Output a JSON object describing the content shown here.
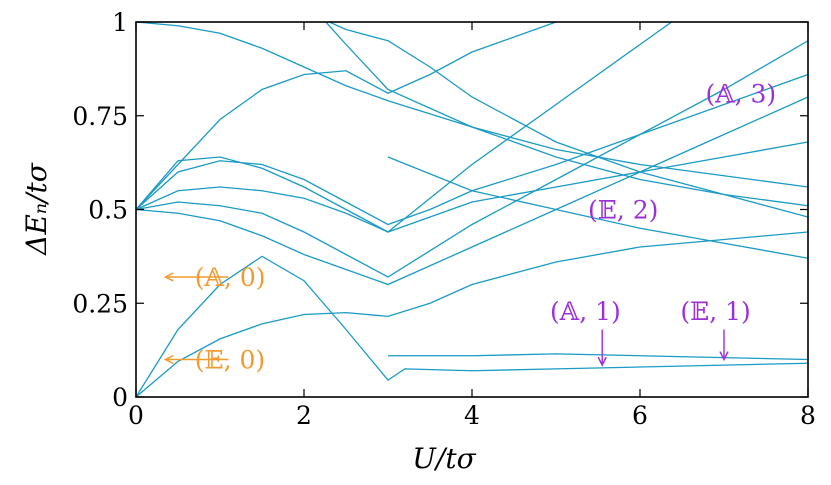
{
  "chart_data": {
    "type": "line",
    "xlabel": "U/tσ",
    "ylabel": "ΔEₙ/tσ",
    "xlim": [
      0,
      8
    ],
    "ylim": [
      0,
      1
    ],
    "x_ticks": [
      "0",
      "2",
      "4",
      "6",
      "8"
    ],
    "y_ticks": [
      "0",
      "0.25",
      "0.5",
      "0.75",
      "1"
    ],
    "x_tick_values": [
      0,
      2,
      4,
      6,
      8
    ],
    "y_tick_values": [
      0,
      0.25,
      0.5,
      0.75,
      1
    ],
    "grid": false,
    "line_color": "#1a9bc4",
    "series": [
      {
        "x": [
          0,
          0.5,
          1,
          1.5,
          2,
          2.5,
          3,
          3.5,
          4,
          5,
          6,
          7,
          8
        ],
        "y": [
          0,
          0.095,
          0.155,
          0.195,
          0.22,
          0.225,
          0.215,
          0.25,
          0.3,
          0.36,
          0.4,
          0.42,
          0.44
        ]
      },
      {
        "x": [
          0,
          0.5,
          1,
          1.5,
          2,
          2.5,
          3,
          3.2,
          4,
          5,
          6,
          7,
          8
        ],
        "y": [
          0,
          0.18,
          0.3,
          0.375,
          0.31,
          0.18,
          0.045,
          0.075,
          0.07,
          0.075,
          0.08,
          0.085,
          0.09
        ]
      },
      {
        "x": [
          0,
          0.5,
          1,
          1.5,
          2,
          2.5,
          3,
          4,
          5,
          6,
          7,
          8
        ],
        "y": [
          0.5,
          0.49,
          0.47,
          0.43,
          0.38,
          0.34,
          0.3,
          0.4,
          0.5,
          0.6,
          0.7,
          0.8
        ]
      },
      {
        "x": [
          0,
          0.5,
          1,
          1.5,
          2,
          2.5,
          3,
          4,
          5,
          6,
          7,
          8
        ],
        "y": [
          0.5,
          0.52,
          0.51,
          0.49,
          0.44,
          0.38,
          0.32,
          0.46,
          0.58,
          0.7,
          0.82,
          0.95
        ]
      },
      {
        "x": [
          0,
          0.5,
          1,
          1.5,
          2,
          2.5,
          3,
          4,
          5,
          6,
          7,
          8
        ],
        "y": [
          0.5,
          0.55,
          0.56,
          0.55,
          0.53,
          0.49,
          0.44,
          0.62,
          0.78,
          0.94,
          1.1,
          1.2
        ]
      },
      {
        "x": [
          0,
          0.5,
          1,
          1.5,
          2,
          2.5,
          3,
          3.5,
          4,
          5,
          6,
          7,
          8
        ],
        "y": [
          0.5,
          0.6,
          0.63,
          0.62,
          0.58,
          0.52,
          0.46,
          0.5,
          0.55,
          0.62,
          0.7,
          0.78,
          0.86
        ]
      },
      {
        "x": [
          0,
          0.5,
          1,
          1.5,
          2,
          2.5,
          3,
          3.5,
          4,
          5,
          6,
          7,
          8
        ],
        "y": [
          0.5,
          0.63,
          0.64,
          0.61,
          0.56,
          0.5,
          0.44,
          0.48,
          0.52,
          0.56,
          0.6,
          0.64,
          0.68
        ]
      },
      {
        "x": [
          0,
          0.5,
          1,
          1.5,
          2,
          2.5,
          3,
          4,
          5,
          6,
          7,
          8
        ],
        "y": [
          1,
          0.99,
          0.97,
          0.93,
          0.88,
          0.83,
          0.79,
          0.72,
          0.66,
          0.62,
          0.59,
          0.56
        ]
      },
      {
        "x": [
          0,
          0.5,
          1,
          1.5,
          2,
          2.5,
          3,
          3.5,
          4,
          5,
          6,
          7,
          8
        ],
        "y": [
          0.5,
          0.62,
          0.74,
          0.82,
          0.86,
          0.87,
          0.81,
          0.86,
          0.92,
          1.0,
          1.05,
          1.1,
          1.15
        ]
      },
      {
        "x": [
          2.1,
          2.5,
          3,
          3.5,
          4,
          4.5,
          5,
          6,
          7,
          8
        ],
        "y": [
          1.02,
          0.98,
          0.95,
          0.88,
          0.8,
          0.74,
          0.68,
          0.6,
          0.54,
          0.48
        ]
      },
      {
        "x": [
          2.1,
          2.5,
          3,
          4,
          5,
          6,
          7,
          8
        ],
        "y": [
          1.04,
          0.94,
          0.82,
          0.72,
          0.64,
          0.58,
          0.54,
          0.51
        ]
      },
      {
        "x": [
          3,
          4,
          5,
          6,
          7,
          8
        ],
        "y": [
          0.11,
          0.11,
          0.115,
          0.11,
          0.105,
          0.1
        ]
      },
      {
        "x": [
          3,
          4,
          5,
          6,
          7,
          8
        ],
        "y": [
          0.64,
          0.55,
          0.5,
          0.45,
          0.41,
          0.37
        ]
      }
    ],
    "annotations": [
      {
        "label": "(А, 0)",
        "display": "(𝔸, 0)",
        "x": 0.7,
        "y": 0.32,
        "color": "#f29a2e",
        "arrow_from": [
          1.1,
          0.32
        ],
        "arrow_to": [
          0.35,
          0.32
        ]
      },
      {
        "label": "(𝔼, 0)",
        "display": "(𝔼, 0)",
        "x": 0.7,
        "y": 0.1,
        "color": "#f29a2e",
        "arrow_from": [
          1.1,
          0.1
        ],
        "arrow_to": [
          0.35,
          0.1
        ]
      },
      {
        "label": "(𝔸, 3)",
        "display": "(𝔸, 3)",
        "x": 7.2,
        "y": 0.81,
        "color": "#9b30d9"
      },
      {
        "label": "(𝔼, 2)",
        "display": "(𝔼, 2)",
        "x": 5.8,
        "y": 0.5,
        "color": "#9b30d9"
      },
      {
        "label": "(𝔸, 1)",
        "display": "(𝔸, 1)",
        "x": 5.35,
        "y": 0.23,
        "color": "#9b30d9",
        "arrow_from": [
          5.55,
          0.18
        ],
        "arrow_to": [
          5.55,
          0.085
        ]
      },
      {
        "label": "(𝔼, 1)",
        "display": "(𝔼, 1)",
        "x": 6.9,
        "y": 0.23,
        "color": "#9b30d9",
        "arrow_from": [
          7.0,
          0.18
        ],
        "arrow_to": [
          7.0,
          0.1
        ]
      }
    ]
  }
}
